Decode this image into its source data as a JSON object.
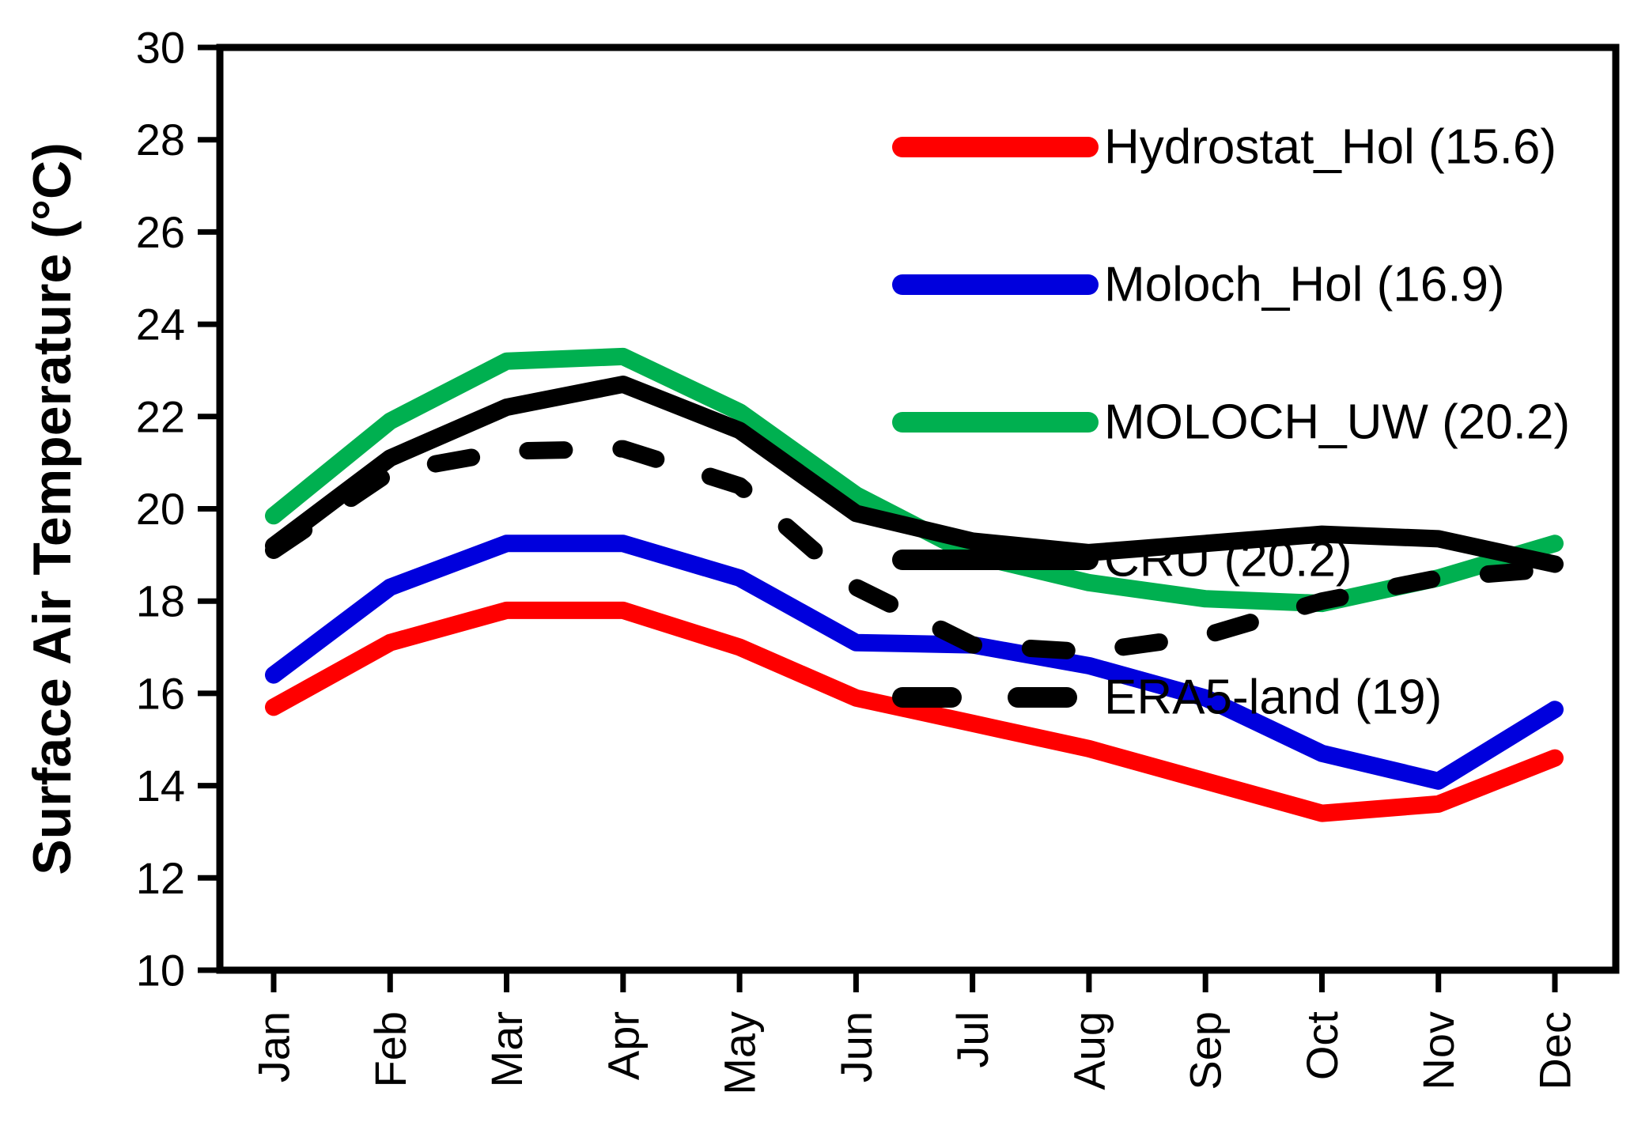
{
  "chart_data": {
    "type": "line",
    "title": "",
    "xlabel": "",
    "ylabel": "Surface Air Temperature (°C)",
    "ylim": [
      10,
      30
    ],
    "ytick_step": 2,
    "ytick_labels": [
      "10",
      "12",
      "14",
      "16",
      "18",
      "20",
      "22",
      "24",
      "26",
      "28",
      "30"
    ],
    "grid": false,
    "legend_position": "top-right",
    "categories": [
      "Jan",
      "Feb",
      "Mar",
      "Apr",
      "May",
      "Jun",
      "Jul",
      "Aug",
      "Sep",
      "Oct",
      "Nov",
      "Dec"
    ],
    "series": [
      {
        "name": "Hydrostat_Hol",
        "legend_label": "Hydrostat_Hol (15.6)",
        "color": "#ff0000",
        "dash": false,
        "values": [
          15.7,
          17.1,
          17.8,
          17.8,
          17.0,
          15.9,
          15.35,
          14.8,
          14.1,
          13.4,
          13.6,
          14.6
        ]
      },
      {
        "name": "Moloch_Hol",
        "legend_label": "Moloch_Hol (16.9)",
        "color": "#0000dd",
        "dash": false,
        "values": [
          16.4,
          18.3,
          19.25,
          19.25,
          18.5,
          17.1,
          17.05,
          16.6,
          15.9,
          14.7,
          14.1,
          15.65
        ]
      },
      {
        "name": "MOLOCH_UW",
        "legend_label": "MOLOCH_UW (20.2)",
        "color": "#00b050",
        "dash": false,
        "values": [
          19.85,
          21.9,
          23.2,
          23.3,
          22.1,
          20.3,
          19.0,
          18.4,
          18.05,
          17.95,
          18.5,
          19.25
        ]
      },
      {
        "name": "CRU",
        "legend_label": "CRU (20.2)",
        "color": "#000000",
        "dash": false,
        "values": [
          19.2,
          21.1,
          22.2,
          22.7,
          21.7,
          19.9,
          19.3,
          19.05,
          19.25,
          19.45,
          19.35,
          18.8
        ]
      },
      {
        "name": "ERA5-land",
        "legend_label": "ERA5-land (19)",
        "color": "#000000",
        "dash": true,
        "values": [
          19.1,
          20.8,
          21.25,
          21.3,
          20.5,
          18.3,
          17.05,
          16.9,
          17.25,
          18.0,
          18.5,
          18.7
        ]
      }
    ],
    "axis_color": "#000000"
  }
}
